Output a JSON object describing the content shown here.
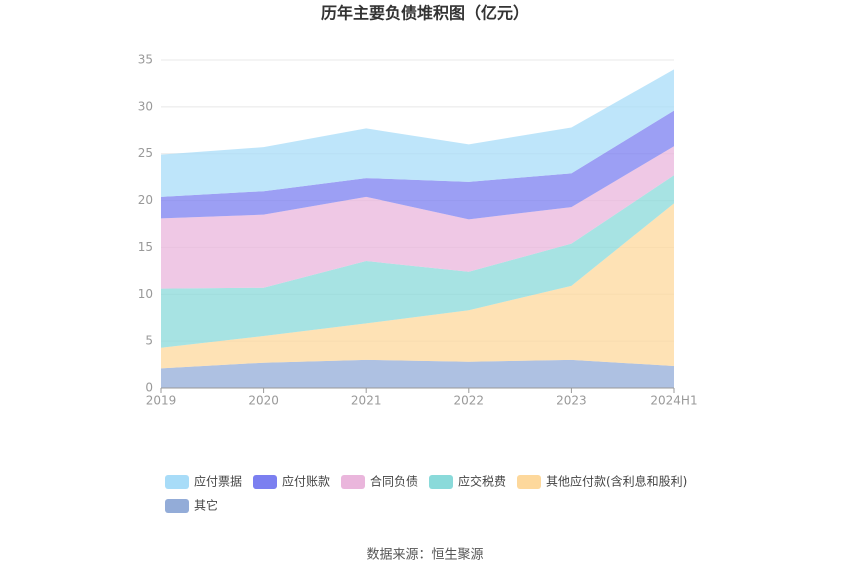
{
  "chart_data": {
    "type": "stacked-area",
    "title": "历年主要负债堆积图（亿元）",
    "categories": [
      "2019",
      "2020",
      "2021",
      "2022",
      "2023",
      "2024H1"
    ],
    "series": [
      {
        "name": "应付票据",
        "color": "#a8dcf8",
        "values": [
          4.5,
          4.7,
          5.3,
          4.0,
          4.9,
          4.4
        ]
      },
      {
        "name": "应付账款",
        "color": "#7b7ff0",
        "values": [
          2.3,
          2.5,
          2.0,
          4.0,
          3.6,
          3.8
        ]
      },
      {
        "name": "合同负债",
        "color": "#eab6dc",
        "values": [
          7.5,
          7.8,
          6.85,
          5.6,
          3.9,
          3.1
        ]
      },
      {
        "name": "应交税费",
        "color": "#8adada",
        "values": [
          6.3,
          5.15,
          6.65,
          4.1,
          4.5,
          3.0
        ]
      },
      {
        "name": "其他应付款(含利息和股利)",
        "color": "#fdd89c",
        "values": [
          2.2,
          2.85,
          3.9,
          5.5,
          7.9,
          17.35
        ]
      },
      {
        "name": "其它",
        "color": "#93acd8",
        "values": [
          2.1,
          2.7,
          3.0,
          2.8,
          3.0,
          2.35
        ]
      }
    ],
    "ylim": [
      0,
      35
    ],
    "yticks": [
      0,
      5,
      10,
      15,
      20,
      25,
      30,
      35
    ],
    "grid": true,
    "source": "数据来源：恒生聚源"
  }
}
